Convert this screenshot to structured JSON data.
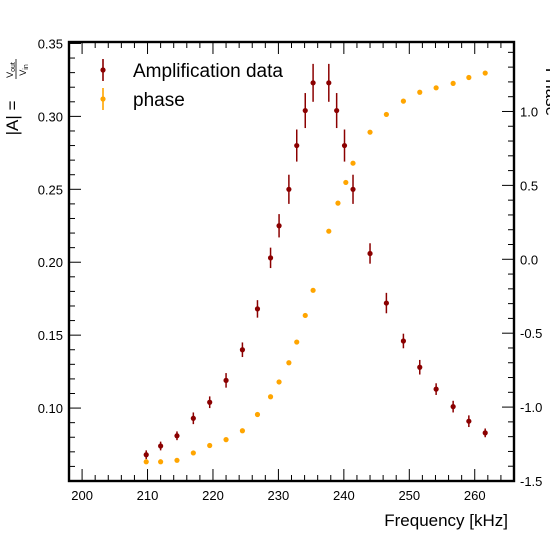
{
  "chart_data": {
    "type": "scatter",
    "xlabel": "Frequency [kHz]",
    "ylabel_main": "|A| =",
    "ylabel_frac_num": "V",
    "ylabel_frac_num_sub": "out",
    "ylabel_frac_den": "V",
    "ylabel_frac_den_sub": "in",
    "ylabel_right": "Phase",
    "xlim": [
      198,
      266
    ],
    "ylim_left": [
      0.05,
      0.351
    ],
    "ylim_right": [
      -1.5,
      1.47
    ],
    "grid": false,
    "legend_position": "top-left",
    "x_ticks": [
      "200",
      "210",
      "220",
      "230",
      "240",
      "250",
      "260"
    ],
    "y_ticks_left": [
      "0.10",
      "0.15",
      "0.20",
      "0.25",
      "0.30",
      "0.35"
    ],
    "y_ticks_right": [
      "-1.5",
      "-1.0",
      "-0.5",
      "0.0",
      "0.5",
      "1.0"
    ],
    "series": [
      {
        "name": "Amplification data",
        "color": "#8b0000",
        "axis": "left",
        "x": [
          209.8,
          212,
          214.5,
          217,
          219.5,
          222,
          224.5,
          226.8,
          228.8,
          230.1,
          231.6,
          232.8,
          234.1,
          235.3,
          237.7,
          238.9,
          240.1,
          241.4,
          244,
          246.5,
          249.1,
          251.6,
          254.1,
          256.7,
          259.1,
          261.6
        ],
        "y": [
          0.068,
          0.074,
          0.081,
          0.093,
          0.104,
          0.119,
          0.14,
          0.168,
          0.203,
          0.225,
          0.25,
          0.28,
          0.304,
          0.323,
          0.323,
          0.304,
          0.28,
          0.25,
          0.206,
          0.172,
          0.146,
          0.128,
          0.113,
          0.101,
          0.091,
          0.083
        ],
        "yerr": [
          0.003,
          0.003,
          0.003,
          0.004,
          0.004,
          0.005,
          0.005,
          0.006,
          0.007,
          0.008,
          0.01,
          0.011,
          0.012,
          0.013,
          0.013,
          0.012,
          0.011,
          0.01,
          0.007,
          0.007,
          0.005,
          0.005,
          0.004,
          0.004,
          0.004,
          0.003
        ]
      },
      {
        "name": "phase",
        "color": "#ffa500",
        "axis": "right",
        "x": [
          209.8,
          212,
          214.5,
          217,
          219.5,
          222,
          224.5,
          226.8,
          228.8,
          230.1,
          231.6,
          232.8,
          234.1,
          235.3,
          237.7,
          239.1,
          240.3,
          241.4,
          244,
          246.5,
          249.1,
          251.6,
          254.1,
          256.7,
          259.1,
          261.6
        ],
        "y": [
          -1.37,
          -1.37,
          -1.36,
          -1.31,
          -1.26,
          -1.22,
          -1.16,
          -1.05,
          -0.93,
          -0.83,
          -0.7,
          -0.56,
          -0.38,
          -0.21,
          0.19,
          0.38,
          0.52,
          0.65,
          0.86,
          0.98,
          1.07,
          1.13,
          1.16,
          1.19,
          1.23,
          1.26
        ]
      }
    ]
  }
}
